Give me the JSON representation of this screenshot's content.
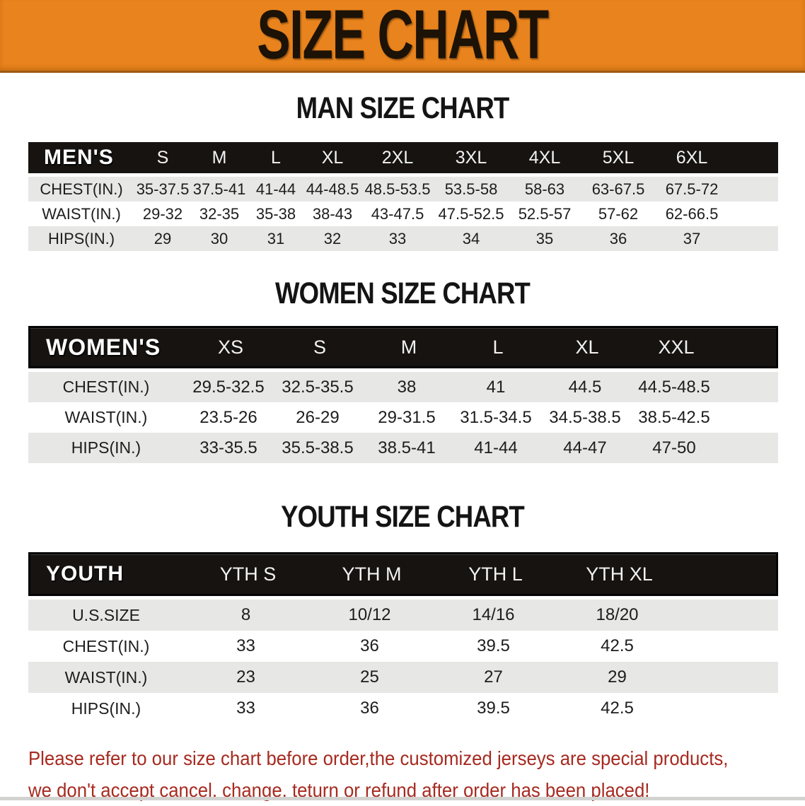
{
  "banner": {
    "title": "SIZE CHART",
    "bg_color": "#E8831D",
    "text_color": "#1C1206"
  },
  "sections": [
    {
      "heading": "MAN SIZE CHART",
      "table": {
        "label": "MEN'S",
        "columns": [
          "S",
          "M",
          "L",
          "XL",
          "2XL",
          "3XL",
          "4XL",
          "5XL",
          "6XL"
        ],
        "rows": [
          {
            "label": "CHEST(IN.)",
            "values": [
              "35-37.5",
              "37.5-41",
              "41-44",
              "44-48.5",
              "48.5-53.5",
              "53.5-58",
              "58-63",
              "63-67.5",
              "67.5-72"
            ]
          },
          {
            "label": "WAIST(IN.)",
            "values": [
              "29-32",
              "32-35",
              "35-38",
              "38-43",
              "43-47.5",
              "47.5-52.5",
              "52.5-57",
              "57-62",
              "62-66.5"
            ]
          },
          {
            "label": "HIPS(IN.)",
            "values": [
              "29",
              "30",
              "31",
              "32",
              "33",
              "34",
              "35",
              "36",
              "37"
            ]
          }
        ]
      }
    },
    {
      "heading": "WOMEN SIZE CHART",
      "table": {
        "label": "WOMEN'S",
        "columns": [
          "XS",
          "S",
          "M",
          "L",
          "XL",
          "XXL"
        ],
        "rows": [
          {
            "label": "CHEST(IN.)",
            "values": [
              "29.5-32.5",
              "32.5-35.5",
              "38",
              "41",
              "44.5",
              "44.5-48.5"
            ]
          },
          {
            "label": "WAIST(IN.)",
            "values": [
              "23.5-26",
              "26-29",
              "29-31.5",
              "31.5-34.5",
              "34.5-38.5",
              "38.5-42.5"
            ]
          },
          {
            "label": "HIPS(IN.)",
            "values": [
              "33-35.5",
              "35.5-38.5",
              "38.5-41",
              "41-44",
              "44-47",
              "47-50"
            ]
          }
        ]
      }
    },
    {
      "heading": "YOUTH SIZE CHART",
      "table": {
        "label": "YOUTH",
        "columns": [
          "YTH S",
          "YTH M",
          "YTH L",
          "YTH XL"
        ],
        "rows": [
          {
            "label": "U.S.SIZE",
            "values": [
              "8",
              "10/12",
              "14/16",
              "18/20"
            ]
          },
          {
            "label": "CHEST(IN.)",
            "values": [
              "33",
              "36",
              "39.5",
              "42.5"
            ]
          },
          {
            "label": "WAIST(IN.)",
            "values": [
              "23",
              "25",
              "27",
              "29"
            ]
          },
          {
            "label": "HIPS(IN.)",
            "values": [
              "33",
              "36",
              "39.5",
              "42.5"
            ]
          }
        ]
      }
    }
  ],
  "disclaimer": {
    "line1": "Please refer to our size chart before order,the customized jerseys are special products,",
    "line2": "we don't accept cancel, change, teturn or refund after order has been placed!",
    "color": "#A62A20"
  },
  "colors": {
    "header_row_bg": "#161311",
    "alt_row_bg": "#E7E7E5",
    "banner_bg": "#E8831D"
  }
}
